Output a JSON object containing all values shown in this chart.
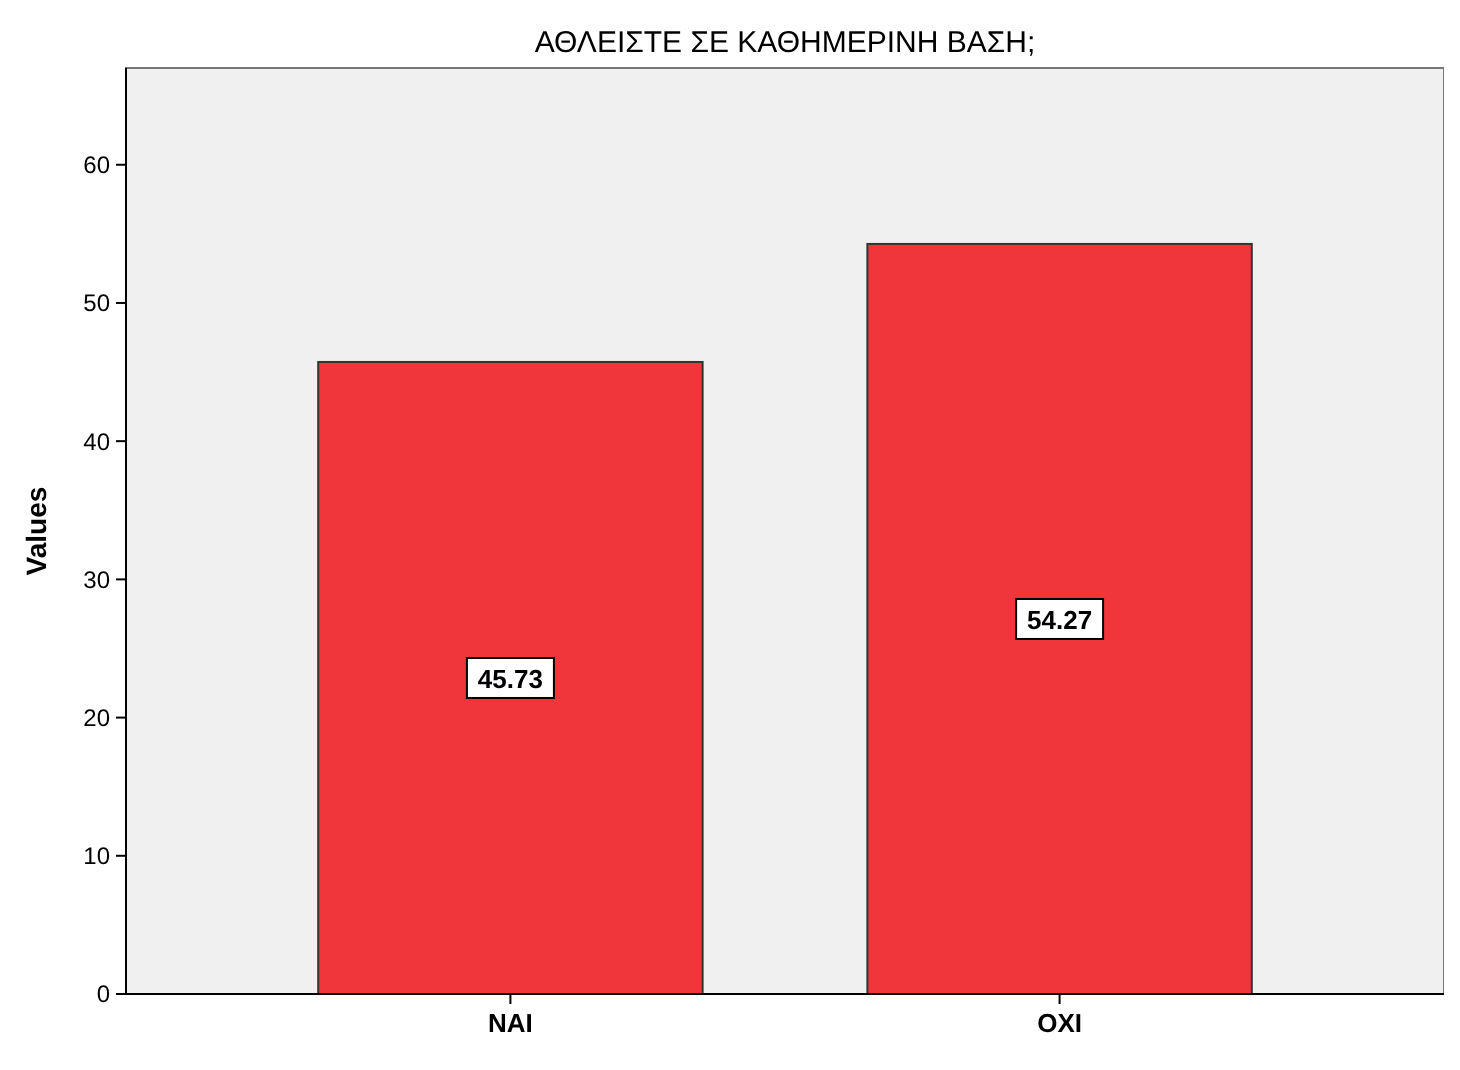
{
  "chart_data": {
    "type": "bar",
    "title": "ΑΘΛΕΙΣΤΕ ΣΕ ΚΑΘΗΜΕΡΙΝΗ ΒΑΣΗ;",
    "ylabel": "Values",
    "categories": [
      "ΝΑΙ",
      "ΟΧΙ"
    ],
    "values": [
      45.73,
      54.27
    ],
    "color": "#f0353b",
    "ylim": [
      0,
      67
    ],
    "yticks": [
      0,
      10,
      20,
      30,
      40,
      50,
      60
    ],
    "data_labels": true
  }
}
